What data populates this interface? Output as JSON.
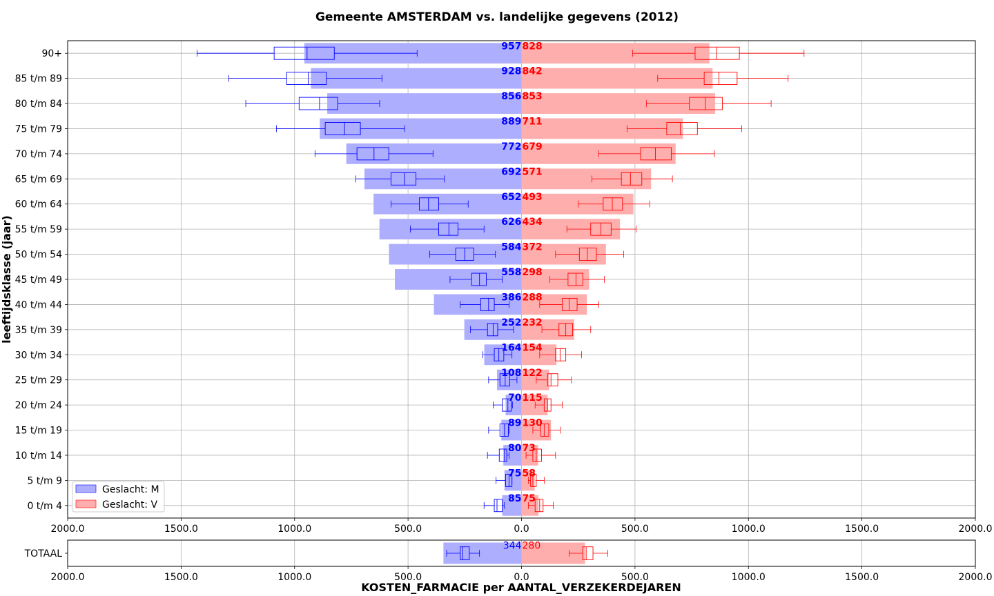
{
  "chart_data": {
    "type": "bar",
    "orientation": "horizontal-butterfly",
    "title": "Gemeente AMSTERDAM vs. landelijke gegevens (2012)",
    "xlabel": "KOSTEN_FARMACIE per AANTAL_VERZEKERDEJAREN",
    "ylabel": "leeftijdsklasse (jaar)",
    "xlim": [
      -2000,
      2000
    ],
    "xticks": [
      -2000,
      -1500,
      -1000,
      -500,
      0,
      500,
      1000,
      1500,
      2000
    ],
    "xtick_labels": [
      "2000.0",
      "1500.0",
      "1000.0",
      "500.0",
      "0.0",
      "500.0",
      "1000.0",
      "1500.0",
      "2000.0"
    ],
    "grid": true,
    "legend_position": "lower-left",
    "colors": {
      "M": "#0000ff",
      "V": "#ff0000",
      "M_fill": "#aeaeff",
      "V_fill": "#ffaeae"
    },
    "categories": [
      "0 t/m  4",
      "5 t/m  9",
      "10 t/m 14",
      "15 t/m 19",
      "20 t/m 24",
      "25 t/m 29",
      "30 t/m 34",
      "35 t/m 39",
      "40 t/m 44",
      "45 t/m 49",
      "50 t/m 54",
      "55 t/m 59",
      "60 t/m 64",
      "65 t/m 69",
      "70 t/m 74",
      "75 t/m 79",
      "80 t/m 84",
      "85 t/m 89",
      "90+"
    ],
    "series": [
      {
        "name": "Geslacht: M",
        "values": [
          85,
          75,
          80,
          89,
          70,
          108,
          164,
          252,
          386,
          558,
          584,
          626,
          652,
          692,
          772,
          889,
          856,
          928,
          957
        ],
        "box": [
          {
            "wlo": 75,
            "q1": 85,
            "med": 108,
            "q3": 120,
            "whi": 165
          },
          {
            "wlo": 42,
            "q1": 42,
            "med": 55,
            "q3": 70,
            "whi": 112
          },
          {
            "wlo": 55,
            "q1": 65,
            "med": 75,
            "q3": 98,
            "whi": 150
          },
          {
            "wlo": 55,
            "q1": 58,
            "med": 75,
            "q3": 95,
            "whi": 145
          },
          {
            "wlo": 40,
            "q1": 45,
            "med": 60,
            "q3": 85,
            "whi": 125
          },
          {
            "wlo": 20,
            "q1": 52,
            "med": 72,
            "q3": 95,
            "whi": 145
          },
          {
            "wlo": 42,
            "q1": 78,
            "med": 100,
            "q3": 120,
            "whi": 170
          },
          {
            "wlo": 35,
            "q1": 105,
            "med": 125,
            "q3": 150,
            "whi": 225
          },
          {
            "wlo": 55,
            "q1": 120,
            "med": 145,
            "q3": 180,
            "whi": 270
          },
          {
            "wlo": 85,
            "q1": 155,
            "med": 185,
            "q3": 220,
            "whi": 315
          },
          {
            "wlo": 115,
            "q1": 210,
            "med": 250,
            "q3": 290,
            "whi": 405
          },
          {
            "wlo": 165,
            "q1": 280,
            "med": 320,
            "q3": 365,
            "whi": 490
          },
          {
            "wlo": 235,
            "q1": 365,
            "med": 410,
            "q3": 450,
            "whi": 575
          },
          {
            "wlo": 340,
            "q1": 465,
            "med": 515,
            "q3": 575,
            "whi": 730
          },
          {
            "wlo": 390,
            "q1": 585,
            "med": 650,
            "q3": 725,
            "whi": 910
          },
          {
            "wlo": 515,
            "q1": 710,
            "med": 780,
            "q3": 865,
            "whi": 1080
          },
          {
            "wlo": 625,
            "q1": 810,
            "med": 890,
            "q3": 980,
            "whi": 1215
          },
          {
            "wlo": 615,
            "q1": 860,
            "med": 940,
            "q3": 1035,
            "whi": 1290
          },
          {
            "wlo": 460,
            "q1": 825,
            "med": 945,
            "q3": 1090,
            "whi": 1430
          }
        ]
      },
      {
        "name": "Geslacht: V",
        "values": [
          75,
          58,
          73,
          130,
          115,
          122,
          154,
          232,
          288,
          298,
          372,
          434,
          493,
          571,
          679,
          711,
          853,
          842,
          828
        ],
        "box": [
          {
            "wlo": 30,
            "q1": 60,
            "med": 80,
            "q3": 95,
            "whi": 140
          },
          {
            "wlo": 30,
            "q1": 40,
            "med": 50,
            "q3": 65,
            "whi": 100
          },
          {
            "wlo": 20,
            "q1": 50,
            "med": 65,
            "q3": 88,
            "whi": 150
          },
          {
            "wlo": 50,
            "q1": 85,
            "med": 100,
            "q3": 120,
            "whi": 170
          },
          {
            "wlo": 60,
            "q1": 100,
            "med": 115,
            "q3": 130,
            "whi": 180
          },
          {
            "wlo": 65,
            "q1": 115,
            "med": 130,
            "q3": 160,
            "whi": 220
          },
          {
            "wlo": 80,
            "q1": 150,
            "med": 170,
            "q3": 195,
            "whi": 265
          },
          {
            "wlo": 90,
            "q1": 165,
            "med": 195,
            "q3": 225,
            "whi": 305
          },
          {
            "wlo": 80,
            "q1": 180,
            "med": 210,
            "q3": 245,
            "whi": 340
          },
          {
            "wlo": 125,
            "q1": 205,
            "med": 240,
            "q3": 270,
            "whi": 365
          },
          {
            "wlo": 150,
            "q1": 255,
            "med": 290,
            "q3": 330,
            "whi": 450
          },
          {
            "wlo": 200,
            "q1": 305,
            "med": 350,
            "q3": 395,
            "whi": 505
          },
          {
            "wlo": 250,
            "q1": 360,
            "med": 400,
            "q3": 445,
            "whi": 565
          },
          {
            "wlo": 310,
            "q1": 440,
            "med": 480,
            "q3": 530,
            "whi": 665
          },
          {
            "wlo": 340,
            "q1": 525,
            "med": 590,
            "q3": 660,
            "whi": 850
          },
          {
            "wlo": 465,
            "q1": 640,
            "med": 700,
            "q3": 775,
            "whi": 970
          },
          {
            "wlo": 550,
            "q1": 740,
            "med": 810,
            "q3": 885,
            "whi": 1100
          },
          {
            "wlo": 600,
            "q1": 805,
            "med": 870,
            "q3": 950,
            "whi": 1175
          },
          {
            "wlo": 490,
            "q1": 765,
            "med": 860,
            "q3": 960,
            "whi": 1245
          }
        ]
      }
    ],
    "total": {
      "label": "TOTAAL",
      "M": 344,
      "V": 280,
      "box_M": {
        "wlo": 185,
        "q1": 230,
        "med": 260,
        "q3": 270,
        "whi": 330
      },
      "box_V": {
        "wlo": 210,
        "q1": 270,
        "med": 285,
        "q3": 315,
        "whi": 380
      }
    }
  }
}
